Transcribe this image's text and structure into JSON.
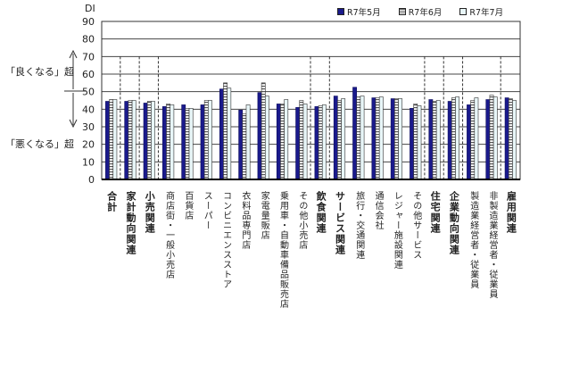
{
  "legend": [
    {
      "label": "R7年5月",
      "style": "solid-navy"
    },
    {
      "label": "R7年6月",
      "style": "hatched"
    },
    {
      "label": "R7年7月",
      "style": "light"
    }
  ],
  "annotations": {
    "y_unit": "DI",
    "upper_note": "「良くなる」超",
    "lower_note": "「悪くなる」超"
  },
  "colors": {
    "series0": "#1a1a8c",
    "series1_line": "#555555",
    "series2": "#e8f6f8",
    "grid": "#333333"
  },
  "chart_data": {
    "type": "bar",
    "title": "",
    "xlabel": "",
    "ylabel": "DI",
    "ylim": [
      0,
      90
    ],
    "yticks": [
      0,
      10,
      20,
      30,
      40,
      50,
      60,
      70,
      80,
      90
    ],
    "grid": true,
    "legend_position": "top-right",
    "categories": [
      "合計",
      "家計動向関連",
      "小売関連",
      "商店街・一般小売店",
      "百貨店",
      "スーパー",
      "コンビニエンスストア",
      "衣料品専門店",
      "家電量販店",
      "乗用車・自動車備品販売店",
      "その他小売店",
      "飲食関連",
      "サービス関連",
      "旅行・交通関連",
      "通信会社",
      "レジャー施設関連",
      "その他サービス",
      "住宅関連",
      "企業動向関連",
      "製造業経営者・従業員",
      "非製造業経営者・従業員",
      "雇用関連"
    ],
    "category_bold": [
      true,
      true,
      true,
      false,
      false,
      false,
      false,
      false,
      false,
      false,
      false,
      true,
      true,
      false,
      false,
      false,
      false,
      true,
      true,
      false,
      false,
      true
    ],
    "series": [
      {
        "name": "R7年5月",
        "values": [
          44.5,
          44.5,
          43.5,
          41.5,
          42.5,
          42.5,
          51.5,
          39.5,
          49.5,
          43.0,
          41.0,
          41.5,
          47.5,
          52.5,
          46.5,
          46.0,
          40.5,
          45.5,
          44.5,
          42.5,
          45.5,
          46.5
        ]
      },
      {
        "name": "R7年6月",
        "values": [
          45.5,
          45.0,
          44.5,
          43.0,
          40.5,
          45.0,
          55.0,
          37.5,
          55.0,
          43.0,
          45.0,
          42.0,
          45.0,
          47.0,
          46.5,
          46.0,
          43.0,
          44.5,
          46.5,
          45.0,
          48.0,
          46.0
        ]
      },
      {
        "name": "R7年7月",
        "values": [
          45.5,
          45.0,
          44.5,
          42.5,
          40.5,
          45.0,
          52.0,
          42.5,
          47.5,
          45.5,
          43.0,
          42.5,
          46.0,
          47.5,
          47.0,
          46.0,
          42.0,
          45.0,
          47.0,
          46.5,
          47.0,
          45.0
        ]
      }
    ],
    "reference_line": 50,
    "dashed_separators_after": [
      0,
      1,
      2,
      10,
      11,
      16,
      17,
      18,
      20
    ]
  }
}
